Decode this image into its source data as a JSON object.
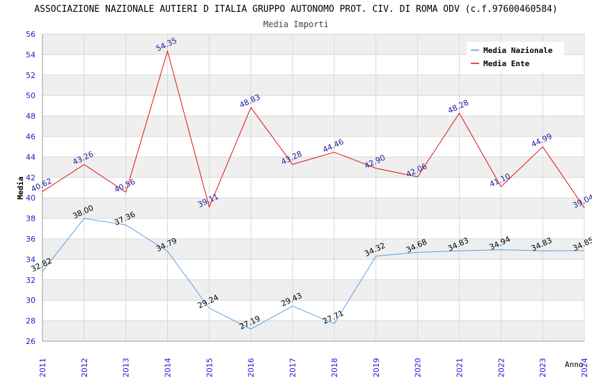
{
  "chart_data": {
    "type": "line",
    "title": "ASSOCIAZIONE NAZIONALE AUTIERI D ITALIA GRUPPO AUTONOMO PROT. CIV. DI ROMA ODV (c.f.97600460584)",
    "subtitle": "Media Importi",
    "xlabel": "Anno",
    "ylabel": "Media",
    "x": [
      "2011",
      "2012",
      "2013",
      "2014",
      "2015",
      "2016",
      "2017",
      "2018",
      "2019",
      "2020",
      "2021",
      "2022",
      "2023",
      "2024"
    ],
    "ylim": [
      26,
      56
    ],
    "yticks": [
      26,
      28,
      30,
      32,
      34,
      36,
      38,
      40,
      42,
      44,
      46,
      48,
      50,
      52,
      54,
      56
    ],
    "grid": true,
    "legend_position": "top-right",
    "series": [
      {
        "name": "Media Nazionale",
        "color": "#5aa0e6",
        "label_color": "#000000",
        "values": [
          32.82,
          38.0,
          37.36,
          34.79,
          29.24,
          27.19,
          29.43,
          27.71,
          34.32,
          34.68,
          34.83,
          34.94,
          34.83,
          34.85
        ],
        "labels": [
          "32.82",
          "38.00",
          "37.36",
          "34.79",
          "29.24",
          "27.19",
          "29.43",
          "27.71",
          "34.32",
          "34.68",
          "34.83",
          "34.94",
          "34.83",
          "34.85"
        ]
      },
      {
        "name": "Media Ente",
        "color": "#e01010",
        "label_color": "#1a1a9a",
        "values": [
          40.62,
          43.26,
          40.56,
          54.35,
          39.11,
          48.83,
          43.28,
          44.46,
          42.9,
          42.06,
          48.28,
          41.1,
          44.99,
          39.04
        ],
        "labels": [
          "40.62",
          "43.26",
          "40.56",
          "54.35",
          "39.11",
          "48.83",
          "43.28",
          "44.46",
          "42.90",
          "42.06",
          "48.28",
          "41.10",
          "44.99",
          "39.04"
        ]
      }
    ],
    "colors": {
      "axis_tick_text": "#1a1acc",
      "band": "#efefef",
      "gridline": "#d8d8d8"
    }
  }
}
